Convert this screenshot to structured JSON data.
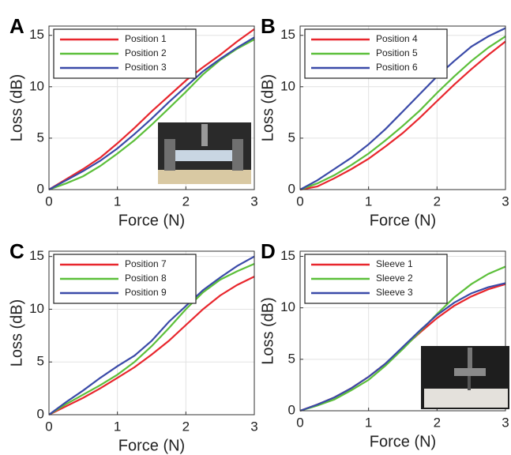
{
  "chart_data": [
    {
      "type": "line",
      "panel": "A",
      "xlabel": "Force (N)",
      "ylabel": "Loss (dB)",
      "xlim": [
        0,
        3
      ],
      "ylim": [
        0,
        15.9
      ],
      "xticks": [
        0,
        1,
        2,
        3
      ],
      "yticks": [
        0,
        5,
        10,
        15
      ],
      "grid": true,
      "legend": "top-left",
      "x": [
        0,
        0.25,
        0.5,
        0.75,
        1,
        1.25,
        1.5,
        1.75,
        2,
        2.25,
        2.5,
        2.75,
        3
      ],
      "series": [
        {
          "name": "Position 1",
          "color": "#e8262d",
          "values": [
            0,
            1.0,
            2.0,
            3.1,
            4.5,
            6.0,
            7.6,
            9.1,
            10.6,
            11.9,
            13.1,
            14.4,
            15.6
          ]
        },
        {
          "name": "Position 2",
          "color": "#5cbf3a",
          "values": [
            0,
            0.6,
            1.3,
            2.3,
            3.5,
            4.8,
            6.3,
            7.9,
            9.5,
            11.2,
            12.6,
            13.7,
            14.6
          ]
        },
        {
          "name": "Position 3",
          "color": "#3a4aa8",
          "values": [
            0,
            0.9,
            1.8,
            2.8,
            4.0,
            5.4,
            6.9,
            8.5,
            10.0,
            11.5,
            12.7,
            13.8,
            14.8
          ]
        }
      ]
    },
    {
      "type": "line",
      "panel": "B",
      "xlabel": "Force (N)",
      "ylabel": "Loss (dB)",
      "xlim": [
        0,
        3
      ],
      "ylim": [
        0,
        15.9
      ],
      "xticks": [
        0,
        1,
        2,
        3
      ],
      "yticks": [
        0,
        5,
        10,
        15
      ],
      "grid": true,
      "legend": "top-left",
      "x": [
        0,
        0.25,
        0.5,
        0.75,
        1,
        1.25,
        1.5,
        1.75,
        2,
        2.25,
        2.5,
        2.75,
        3
      ],
      "series": [
        {
          "name": "Position 4",
          "color": "#e8262d",
          "values": [
            0,
            0.3,
            1.1,
            2.0,
            3.0,
            4.2,
            5.5,
            7.0,
            8.6,
            10.2,
            11.7,
            13.1,
            14.4
          ]
        },
        {
          "name": "Position 5",
          "color": "#5cbf3a",
          "values": [
            0,
            0.6,
            1.4,
            2.4,
            3.5,
            4.8,
            6.2,
            7.7,
            9.4,
            11.0,
            12.5,
            13.8,
            14.9
          ]
        },
        {
          "name": "Position 6",
          "color": "#3a4aa8",
          "values": [
            0,
            0.9,
            2.0,
            3.1,
            4.4,
            5.9,
            7.6,
            9.3,
            11.0,
            12.5,
            13.9,
            14.9,
            15.7
          ]
        }
      ]
    },
    {
      "type": "line",
      "panel": "C",
      "xlabel": "Force (N)",
      "ylabel": "Loss (dB)",
      "xlim": [
        0,
        3
      ],
      "ylim": [
        0,
        15.5
      ],
      "xticks": [
        0,
        1,
        2,
        3
      ],
      "yticks": [
        0,
        5,
        10,
        15
      ],
      "grid": true,
      "legend": "top-left",
      "x": [
        0,
        0.25,
        0.5,
        0.75,
        1,
        1.25,
        1.5,
        1.75,
        2,
        2.25,
        2.5,
        2.75,
        3
      ],
      "series": [
        {
          "name": "Position 7",
          "color": "#e8262d",
          "values": [
            0,
            0.8,
            1.6,
            2.5,
            3.5,
            4.5,
            5.7,
            7.0,
            8.5,
            10.0,
            11.3,
            12.3,
            13.1
          ]
        },
        {
          "name": "Position 8",
          "color": "#5cbf3a",
          "values": [
            0,
            1.0,
            1.9,
            2.8,
            3.8,
            5.0,
            6.5,
            8.2,
            10.0,
            11.6,
            12.8,
            13.6,
            14.3
          ]
        },
        {
          "name": "Position 9",
          "color": "#3a4aa8",
          "values": [
            0,
            1.2,
            2.3,
            3.5,
            4.6,
            5.6,
            7.0,
            8.8,
            10.3,
            11.8,
            13.0,
            14.1,
            15.0
          ]
        }
      ]
    },
    {
      "type": "line",
      "panel": "D",
      "xlabel": "Force (N)",
      "ylabel": "Loss (dB)",
      "xlim": [
        0,
        3
      ],
      "ylim": [
        0,
        15.5
      ],
      "xticks": [
        0,
        1,
        2,
        3
      ],
      "yticks": [
        0,
        5,
        10,
        15
      ],
      "grid": true,
      "legend": "top-left",
      "x": [
        0,
        0.25,
        0.5,
        0.75,
        1,
        1.25,
        1.5,
        1.75,
        2,
        2.25,
        2.5,
        2.75,
        3
      ],
      "series": [
        {
          "name": "Sleeve 1",
          "color": "#e8262d",
          "values": [
            0,
            0.6,
            1.3,
            2.2,
            3.3,
            4.6,
            6.1,
            7.6,
            9.0,
            10.2,
            11.1,
            11.8,
            12.3
          ]
        },
        {
          "name": "Sleeve 2",
          "color": "#5cbf3a",
          "values": [
            0,
            0.5,
            1.1,
            2.0,
            3.0,
            4.4,
            6.0,
            7.7,
            9.4,
            11.0,
            12.3,
            13.3,
            14.0
          ]
        },
        {
          "name": "Sleeve 3",
          "color": "#3a4aa8",
          "values": [
            0,
            0.6,
            1.3,
            2.2,
            3.3,
            4.6,
            6.2,
            7.8,
            9.3,
            10.5,
            11.4,
            12.0,
            12.4
          ]
        }
      ]
    }
  ]
}
